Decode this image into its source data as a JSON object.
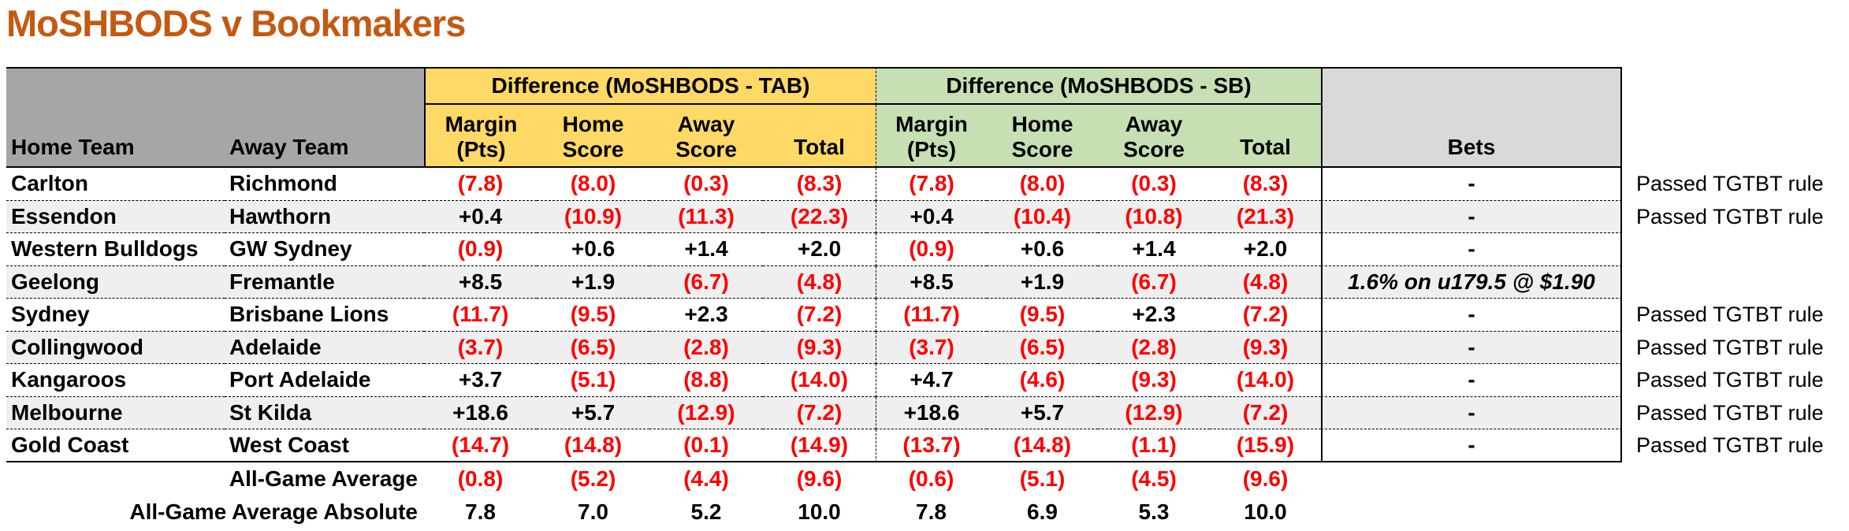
{
  "title": "MoSHBODS v Bookmakers",
  "colors": {
    "title_orange": "#C45911",
    "header_gray": "#A6A6A6",
    "tab_yellow": "#FFD966",
    "sb_green": "#C6E0B4",
    "bets_gray": "#D9D9D9",
    "stripe_gray": "#EFEFEF",
    "negative_red": "#FF0000"
  },
  "table": {
    "group_headers": {
      "tab": "Difference (MoSHBODS - TAB)",
      "sb": "Difference (MoSHBODS - SB)"
    },
    "column_headers": {
      "home_team": "Home Team",
      "away_team": "Away Team",
      "margin_l1": "Margin",
      "margin_l2": "(Pts)",
      "home_l1": "Home",
      "home_l2": "Score",
      "away_l1": "Away",
      "away_l2": "Score",
      "total": "Total",
      "bets": "Bets"
    },
    "rows": [
      {
        "home": "Carlton",
        "away": "Richmond",
        "tab": [
          "(7.8)",
          "(8.0)",
          "(0.3)",
          "(8.3)"
        ],
        "sb": [
          "(7.8)",
          "(8.0)",
          "(0.3)",
          "(8.3)"
        ],
        "bet": "-",
        "note": "Passed TGTBT rule"
      },
      {
        "home": "Essendon",
        "away": "Hawthorn",
        "tab": [
          "+0.4",
          "(10.9)",
          "(11.3)",
          "(22.3)"
        ],
        "sb": [
          "+0.4",
          "(10.4)",
          "(10.8)",
          "(21.3)"
        ],
        "bet": "-",
        "note": "Passed TGTBT rule"
      },
      {
        "home": "Western Bulldogs",
        "away": "GW Sydney",
        "tab": [
          "(0.9)",
          "+0.6",
          "+1.4",
          "+2.0"
        ],
        "sb": [
          "(0.9)",
          "+0.6",
          "+1.4",
          "+2.0"
        ],
        "bet": "-",
        "note": ""
      },
      {
        "home": "Geelong",
        "away": "Fremantle",
        "tab": [
          "+8.5",
          "+1.9",
          "(6.7)",
          "(4.8)"
        ],
        "sb": [
          "+8.5",
          "+1.9",
          "(6.7)",
          "(4.8)"
        ],
        "bet": "1.6% on u179.5 @ $1.90",
        "note": ""
      },
      {
        "home": "Sydney",
        "away": "Brisbane Lions",
        "tab": [
          "(11.7)",
          "(9.5)",
          "+2.3",
          "(7.2)"
        ],
        "sb": [
          "(11.7)",
          "(9.5)",
          "+2.3",
          "(7.2)"
        ],
        "bet": "-",
        "note": "Passed TGTBT rule"
      },
      {
        "home": "Collingwood",
        "away": "Adelaide",
        "tab": [
          "(3.7)",
          "(6.5)",
          "(2.8)",
          "(9.3)"
        ],
        "sb": [
          "(3.7)",
          "(6.5)",
          "(2.8)",
          "(9.3)"
        ],
        "bet": "-",
        "note": "Passed TGTBT rule"
      },
      {
        "home": "Kangaroos",
        "away": "Port Adelaide",
        "tab": [
          "+3.7",
          "(5.1)",
          "(8.8)",
          "(14.0)"
        ],
        "sb": [
          "+4.7",
          "(4.6)",
          "(9.3)",
          "(14.0)"
        ],
        "bet": "-",
        "note": "Passed TGTBT rule"
      },
      {
        "home": "Melbourne",
        "away": "St Kilda",
        "tab": [
          "+18.6",
          "+5.7",
          "(12.9)",
          "(7.2)"
        ],
        "sb": [
          "+18.6",
          "+5.7",
          "(12.9)",
          "(7.2)"
        ],
        "bet": "-",
        "note": "Passed TGTBT rule"
      },
      {
        "home": "Gold Coast",
        "away": "West Coast",
        "tab": [
          "(14.7)",
          "(14.8)",
          "(0.1)",
          "(14.9)"
        ],
        "sb": [
          "(13.7)",
          "(14.8)",
          "(1.1)",
          "(15.9)"
        ],
        "bet": "-",
        "note": "Passed TGTBT rule"
      }
    ],
    "summary": [
      {
        "label": "All-Game Average",
        "tab": [
          "(0.8)",
          "(5.2)",
          "(4.4)",
          "(9.6)"
        ],
        "sb": [
          "(0.6)",
          "(5.1)",
          "(4.5)",
          "(9.6)"
        ]
      },
      {
        "label": "All-Game Average Absolute",
        "tab": [
          "7.8",
          "7.0",
          "5.2",
          "10.0"
        ],
        "sb": [
          "7.8",
          "6.9",
          "5.3",
          "10.0"
        ]
      }
    ]
  }
}
